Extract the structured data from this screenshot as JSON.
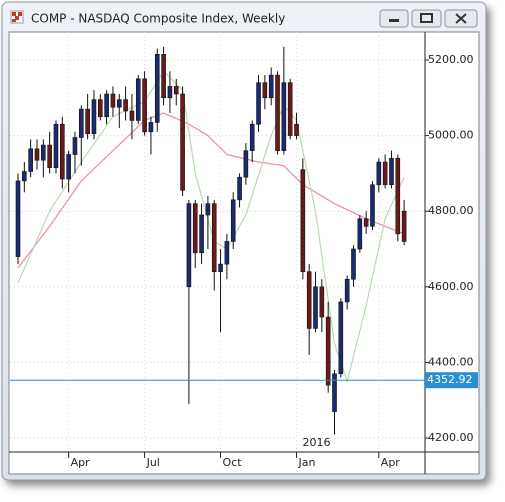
{
  "window": {
    "title": "COMP - NASDAQ Composite Index, Weekly"
  },
  "chart_data": {
    "type": "candlestick",
    "categories": [
      null,
      null,
      null,
      null,
      null,
      null,
      null,
      null,
      "Apr",
      null,
      null,
      null,
      null,
      null,
      null,
      null,
      null,
      null,
      null,
      null,
      "Jul",
      null,
      null,
      null,
      null,
      null,
      null,
      null,
      null,
      null,
      null,
      null,
      "Oct",
      null,
      null,
      null,
      null,
      null,
      null,
      null,
      null,
      null,
      null,
      null,
      "Jan",
      null,
      null,
      null,
      null,
      null,
      null,
      null,
      null,
      null,
      null,
      null,
      null,
      "Apr",
      null,
      null,
      null,
      null
    ],
    "annotation": "2016",
    "open": [
      4680,
      4880,
      4905,
      4965,
      4935,
      4975,
      4915,
      5030,
      4885,
      4950,
      4995,
      5070,
      5005,
      5095,
      5050,
      5110,
      5075,
      5095,
      5065,
      5040,
      5150,
      5010,
      5035,
      5215,
      5100,
      5130,
      5110,
      4600,
      4820,
      4690,
      4790,
      4820,
      4640,
      4660,
      4720,
      4830,
      4890,
      4960,
      5030,
      5140,
      5100,
      5160,
      4960,
      5140,
      5030,
      4910,
      4640,
      4490,
      4600,
      4520,
      4270,
      4370,
      4560,
      4620,
      4700,
      4780,
      4760,
      4870,
      4930,
      4870,
      4940,
      4800
    ],
    "high": [
      4900,
      4930,
      4990,
      4990,
      4990,
      5010,
      5040,
      5050,
      4960,
      5010,
      5080,
      5110,
      5120,
      5110,
      5120,
      5130,
      5110,
      5130,
      5110,
      5160,
      5170,
      5050,
      5230,
      5235,
      5170,
      5150,
      5130,
      4830,
      4830,
      4820,
      4840,
      4830,
      4700,
      4740,
      4850,
      4900,
      4980,
      5040,
      5160,
      5160,
      5180,
      5170,
      5235,
      5150,
      5060,
      4940,
      4660,
      4640,
      4620,
      4560,
      4380,
      4570,
      4630,
      4710,
      4790,
      4800,
      4880,
      4940,
      4950,
      4960,
      4950,
      4830
    ],
    "low": [
      4660,
      4850,
      4890,
      4910,
      4890,
      4900,
      4900,
      4860,
      4850,
      4900,
      4920,
      4990,
      4990,
      5040,
      5030,
      5050,
      5020,
      5040,
      4990,
      5030,
      5000,
      4950,
      5010,
      5080,
      5060,
      5080,
      4840,
      4290,
      4650,
      4660,
      4700,
      4590,
      4480,
      4620,
      4700,
      4810,
      4870,
      4930,
      5010,
      5070,
      5080,
      4950,
      4950,
      4990,
      4990,
      4620,
      4420,
      4480,
      4480,
      4320,
      4210,
      4360,
      4540,
      4600,
      4690,
      4740,
      4750,
      4850,
      4860,
      4860,
      4720,
      4710
    ],
    "close": [
      4880,
      4905,
      4965,
      4935,
      4975,
      4915,
      5030,
      4885,
      4950,
      4995,
      5070,
      5005,
      5095,
      5050,
      5110,
      5075,
      5095,
      5065,
      5040,
      5150,
      5010,
      5035,
      5215,
      5100,
      5130,
      5110,
      4855,
      4820,
      4690,
      4790,
      4820,
      4640,
      4660,
      4720,
      4830,
      4890,
      4960,
      5030,
      5140,
      5100,
      5160,
      4960,
      5140,
      5000,
      5000,
      4640,
      4490,
      4600,
      4520,
      4340,
      4370,
      4560,
      4620,
      4700,
      4780,
      4760,
      4870,
      4930,
      4870,
      4940,
      4740,
      4720
    ],
    "up_color": "#1c2a70",
    "down_color": "#6a1a1a",
    "series": [
      {
        "color": "#e98aa8",
        "values": [
          4650,
          4672,
          4694,
          4716,
          4738,
          4760,
          4784,
          4808,
          4832,
          4856,
          4880,
          4896,
          4912,
          4928,
          4944,
          4960,
          4976,
          4992,
          5008,
          5024,
          5040,
          5047,
          5053,
          5060,
          5052,
          5045,
          5038,
          5030,
          5020,
          5010,
          5000,
          4983,
          4967,
          4950,
          4946,
          4942,
          4938,
          4934,
          4930,
          4928,
          4925,
          4923,
          4920,
          4903,
          4887,
          4870,
          4860,
          4850,
          4840,
          4830,
          4820,
          4812,
          4804,
          4796,
          4788,
          4780,
          4773,
          4767,
          4760,
          4753,
          4747,
          4740
        ]
      },
      {
        "color": "#b5dcb0",
        "values": [
          4610,
          4648,
          4686,
          4724,
          4762,
          4800,
          4826,
          4852,
          4878,
          4904,
          4930,
          4954,
          4978,
          5002,
          5026,
          5050,
          5058,
          5066,
          5074,
          5082,
          5090,
          5117,
          5143,
          5170,
          5153,
          5137,
          5120,
          5010,
          4900,
          4840,
          4780,
          4720,
          4710,
          4700,
          4730,
          4760,
          4790,
          4843,
          4895,
          4948,
          5000,
          5040,
          5080,
          5060,
          5040,
          4960,
          4880,
          4800,
          4683,
          4567,
          4450,
          4400,
          4350,
          4417,
          4483,
          4550,
          4627,
          4703,
          4780,
          4817,
          4853,
          4890
        ]
      }
    ],
    "ylim": [
      4163,
      5274
    ],
    "yticks": [
      {
        "value": 4200,
        "label": "4200.00"
      },
      {
        "value": 4400,
        "label": "4400.00"
      },
      {
        "value": 4600,
        "label": "4600.00"
      },
      {
        "value": 4800,
        "label": "4800.00"
      },
      {
        "value": 5000,
        "label": "5000.00"
      },
      {
        "value": 5200,
        "label": "5200.00"
      }
    ],
    "hline": 4352.92,
    "hline_color": "#2a8fd0",
    "grid": true
  }
}
